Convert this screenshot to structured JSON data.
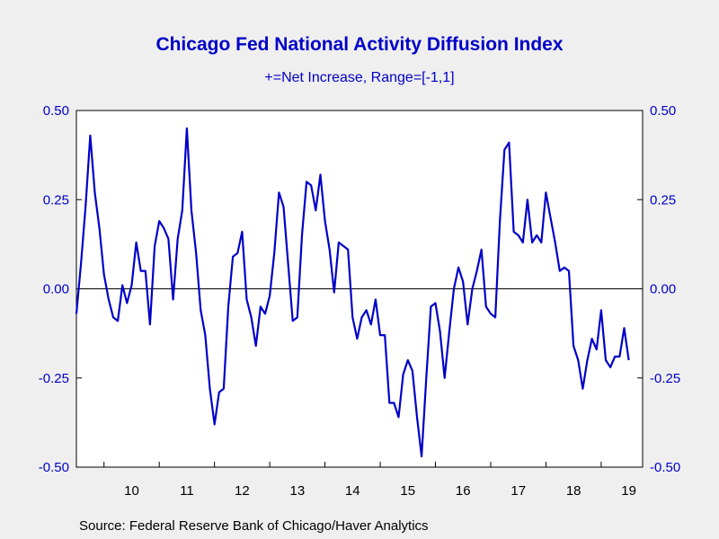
{
  "chart_data": {
    "type": "line",
    "title": "Chicago Fed National Activity Diffusion Index",
    "subtitle": "+=Net Increase, Range=[-1,1]",
    "source": "Source:  Federal Reserve Bank of Chicago/Haver Analytics",
    "ylim": [
      -0.5,
      0.5
    ],
    "y_ticks": [
      -0.5,
      -0.25,
      0.0,
      0.25,
      0.5
    ],
    "y_tick_labels": [
      "-0.50",
      "-0.25",
      "0.00",
      "0.25",
      "0.50"
    ],
    "x_start": 2009.5,
    "x_end": 2019.75,
    "x_step": 0.08333,
    "x_tick_labels": [
      "10",
      "11",
      "12",
      "13",
      "14",
      "15",
      "16",
      "17",
      "18",
      "19"
    ],
    "grid": "zero line only",
    "line_color": "#0000c8",
    "series": [
      {
        "values": [
          -0.07,
          0.07,
          0.23,
          0.43,
          0.27,
          0.17,
          0.04,
          -0.03,
          -0.08,
          -0.09,
          0.01,
          -0.04,
          0.01,
          0.13,
          0.05,
          0.05,
          -0.1,
          0.12,
          0.19,
          0.17,
          0.14,
          -0.03,
          0.14,
          0.22,
          0.45,
          0.22,
          0.1,
          -0.06,
          -0.13,
          -0.28,
          -0.38,
          -0.29,
          -0.28,
          -0.05,
          0.09,
          0.1,
          0.16,
          -0.03,
          -0.08,
          -0.16,
          -0.05,
          -0.07,
          -0.02,
          0.1,
          0.27,
          0.23,
          0.07,
          -0.09,
          -0.08,
          0.15,
          0.3,
          0.29,
          0.22,
          0.32,
          0.19,
          0.11,
          -0.01,
          0.13,
          0.12,
          0.11,
          -0.08,
          -0.14,
          -0.08,
          -0.06,
          -0.1,
          -0.03,
          -0.13,
          -0.13,
          -0.32,
          -0.32,
          -0.36,
          -0.24,
          -0.2,
          -0.23,
          -0.36,
          -0.47,
          -0.25,
          -0.05,
          -0.04,
          -0.12,
          -0.25,
          -0.12,
          0.0,
          0.06,
          0.02,
          -0.1,
          0.0,
          0.05,
          0.11,
          -0.05,
          -0.07,
          -0.08,
          0.19,
          0.39,
          0.41,
          0.16,
          0.15,
          0.13,
          0.25,
          0.13,
          0.15,
          0.13,
          0.27,
          0.2,
          0.13,
          0.05,
          0.06,
          0.05,
          -0.16,
          -0.2,
          -0.28,
          -0.2,
          -0.14,
          -0.17,
          -0.06,
          -0.2,
          -0.22,
          -0.19,
          -0.19,
          -0.11,
          -0.2
        ]
      }
    ]
  }
}
